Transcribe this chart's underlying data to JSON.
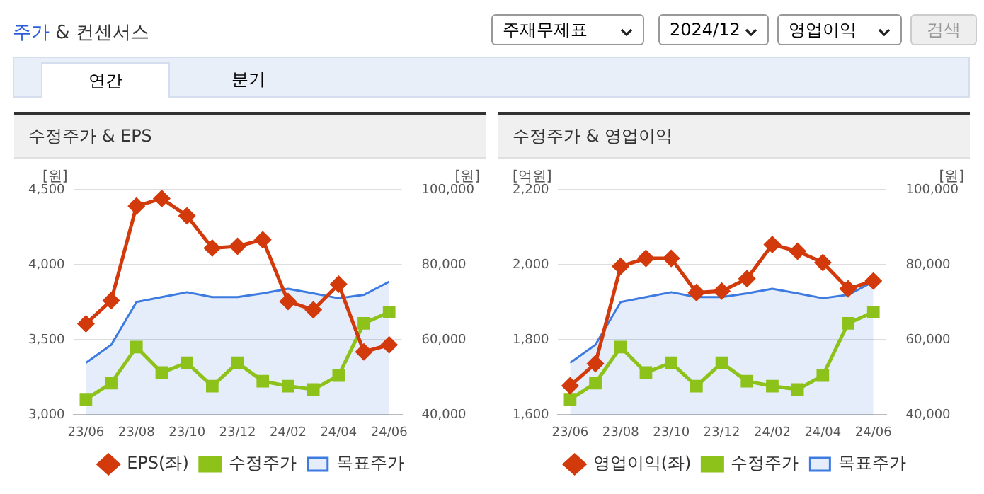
{
  "chart_data": [
    {
      "type": "other",
      "title": "주가 & 컨센서스",
      "annotations": [
        "주재무제표",
        "2024/12",
        "영업이익",
        "검색",
        "연간",
        "분기"
      ]
    },
    {
      "type": "line",
      "title": "수정주가 & EPS",
      "ylabel": "[원]",
      "y2label": "[원]",
      "categories": [
        "23/06",
        null,
        "23/08",
        null,
        "23/10",
        null,
        "23/12",
        null,
        "24/02",
        null,
        "24/04",
        null,
        "24/06"
      ],
      "series": [
        {
          "name": "목표주가",
          "type": "area",
          "axis": "y2",
          "color": "#3d7be0",
          "marker": "none",
          "values": [
            53900,
            58700,
            70100,
            71400,
            72700,
            71400,
            71400,
            72400,
            73600,
            72400,
            71100,
            72000,
            75500
          ]
        },
        {
          "name": "EPS(좌)",
          "type": "line",
          "axis": "y",
          "color": "#d33a0b",
          "marker": "diamond",
          "values": [
            3607,
            3762,
            4391,
            4441,
            4326,
            4111,
            4123,
            4167,
            3756,
            3700,
            3871,
            3420,
            3467
          ]
        },
        {
          "name": "수정주가",
          "type": "line",
          "axis": "y2",
          "color": "#8cc21a",
          "marker": "square",
          "values": [
            44200,
            48500,
            58100,
            51300,
            53900,
            47700,
            53900,
            49000,
            47700,
            46800,
            50500,
            64400,
            67400
          ]
        }
      ],
      "ylim": [
        3000,
        4500
      ],
      "yticks": [
        {
          "value": 3000,
          "label": "3,000"
        },
        {
          "value": 3500,
          "label": "3,500"
        },
        {
          "value": 4000,
          "label": "4,000"
        },
        {
          "value": 4500,
          "label": "4,500"
        }
      ],
      "y2lim": [
        40000,
        100000
      ],
      "y2ticks": [
        {
          "value": 40000,
          "label": "40,000"
        },
        {
          "value": 60000,
          "label": "60,000"
        },
        {
          "value": 80000,
          "label": "80,000"
        },
        {
          "value": 100000,
          "label": "100,000"
        }
      ],
      "grid": "y",
      "legend": "bottom"
    },
    {
      "type": "line",
      "title": "수정주가 & 영업이익",
      "ylabel": "[억원]",
      "y2label": "[원]",
      "categories": [
        "23/06",
        null,
        "23/08",
        null,
        "23/10",
        null,
        "23/12",
        null,
        "24/02",
        null,
        "24/04",
        null,
        "24/06"
      ],
      "series": [
        {
          "name": "목표주가",
          "type": "area",
          "axis": "y2",
          "color": "#3d7be0",
          "marker": "none",
          "values": [
            53900,
            58700,
            70100,
            71400,
            72700,
            71400,
            71400,
            72400,
            73600,
            72400,
            71100,
            72000,
            75500
          ]
        },
        {
          "name": "영업이익(좌)",
          "type": "line",
          "axis": "y",
          "color": "#d33a0b",
          "marker": "diamond",
          "values": [
            1678,
            1737,
            1996,
            2017,
            2017,
            1926,
            1930,
            1963,
            2054,
            2036,
            2006,
            1936,
            1957
          ]
        },
        {
          "name": "수정주가",
          "type": "line",
          "axis": "y2",
          "color": "#8cc21a",
          "marker": "square",
          "values": [
            44200,
            48500,
            58100,
            51300,
            53900,
            47700,
            53900,
            49000,
            47700,
            46800,
            50500,
            64400,
            67400
          ]
        }
      ],
      "ylim": [
        1600,
        2200
      ],
      "yticks": [
        {
          "value": 1600,
          "label": "1,600"
        },
        {
          "value": 1800,
          "label": "1,800"
        },
        {
          "value": 2000,
          "label": "2,000"
        },
        {
          "value": 2200,
          "label": "2,200"
        }
      ],
      "y2lim": [
        40000,
        100000
      ],
      "y2ticks": [
        {
          "value": 40000,
          "label": "40,000"
        },
        {
          "value": 60000,
          "label": "60,000"
        },
        {
          "value": 80000,
          "label": "80,000"
        },
        {
          "value": 100000,
          "label": "100,000"
        }
      ],
      "grid": "y",
      "legend": "bottom"
    }
  ]
}
